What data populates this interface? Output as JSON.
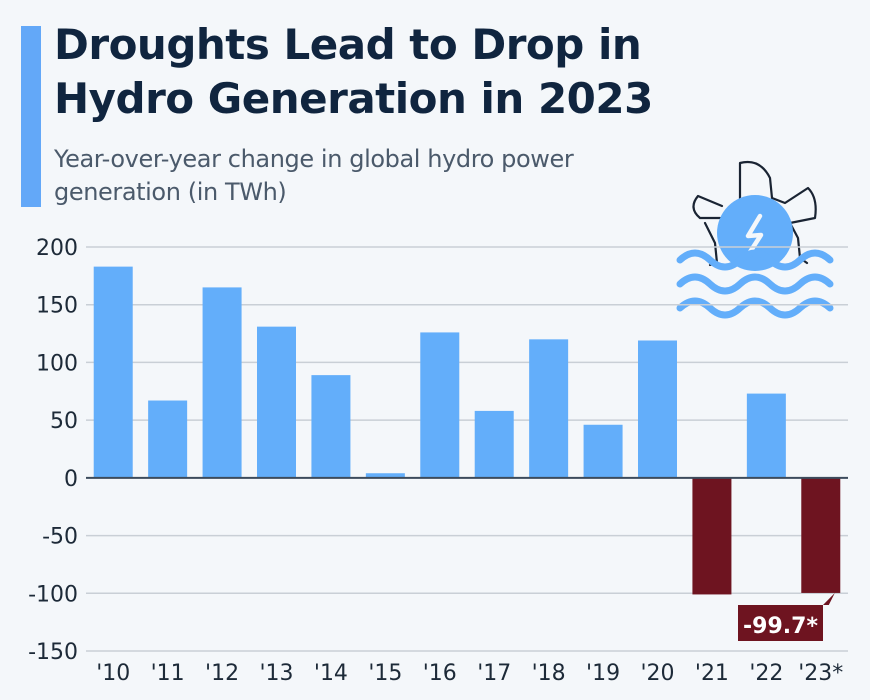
{
  "header": {
    "title": "Droughts Lead to Drop in Hydro Generation in 2023",
    "subtitle": "Year-over-year change in global hydro power generation (in TWh)"
  },
  "icon": {
    "name": "hydro-turbine-waves-icon",
    "glyph": "lightning-bolt"
  },
  "colors": {
    "positive": "#63aefa",
    "negative": "#6e1420",
    "title": "#10253f",
    "accent": "#63a8f8",
    "grid": "#c9cfd6",
    "baseline": "#3c4b5c"
  },
  "chart_data": {
    "type": "bar",
    "title": "Droughts Lead to Drop in Hydro Generation in 2023",
    "subtitle": "Year-over-year change in global hydro power generation (in TWh)",
    "xlabel": "",
    "ylabel": "",
    "categories": [
      "'10",
      "'11",
      "'12",
      "'13",
      "'14",
      "'15",
      "'16",
      "'17",
      "'18",
      "'19",
      "'20",
      "'21",
      "'22",
      "'23*"
    ],
    "values": [
      183,
      67,
      165,
      131,
      89,
      4,
      126,
      58,
      120,
      46,
      119,
      -101,
      73,
      -99.7
    ],
    "ylim": [
      -150,
      200
    ],
    "yticks": [
      200,
      150,
      100,
      50,
      0,
      -50,
      -100,
      -150
    ],
    "grid": true,
    "legend": "none",
    "annotations": [
      {
        "category": "'23*",
        "text": "-99.7*"
      }
    ]
  }
}
